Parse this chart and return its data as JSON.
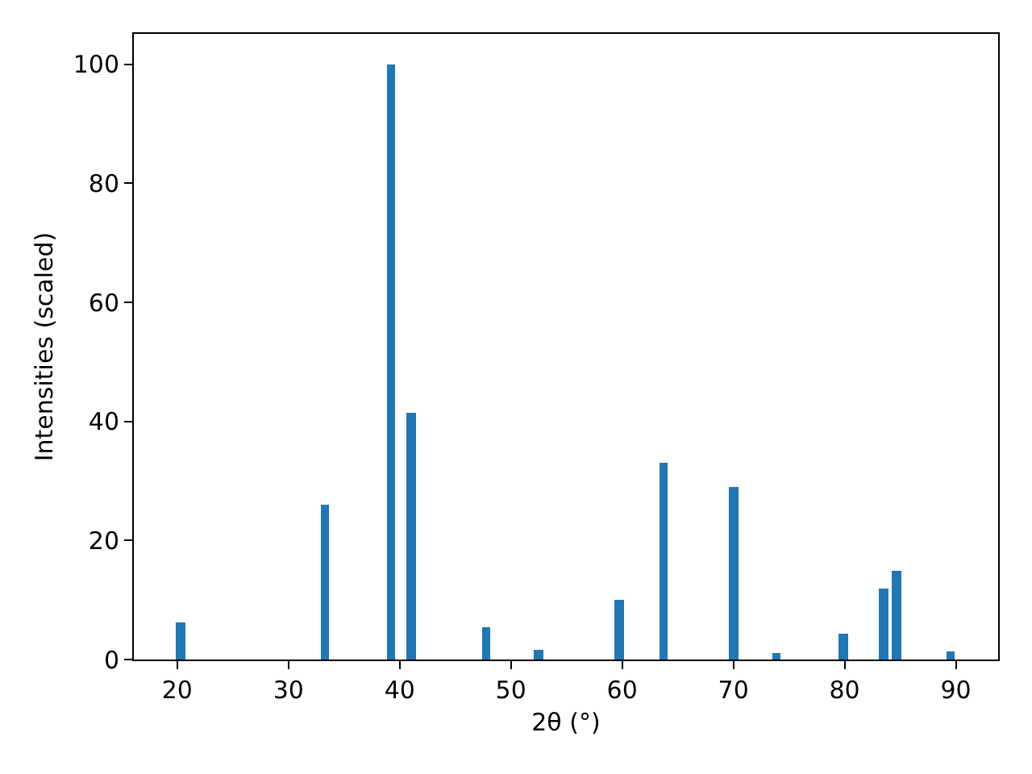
{
  "chart_data": {
    "type": "bar",
    "xlabel": "2θ (°)",
    "ylabel": "Intensities (scaled)",
    "x": [
      20.3,
      33.3,
      39.2,
      41.0,
      47.8,
      52.5,
      59.7,
      63.7,
      70.0,
      73.9,
      79.9,
      83.5,
      84.7,
      89.5
    ],
    "values": [
      6.2,
      26.0,
      100,
      41.5,
      5.4,
      1.6,
      10.0,
      33.1,
      29.0,
      1.1,
      4.3,
      11.9,
      14.9,
      1.4
    ],
    "color": "#1f77b4",
    "xlim": [
      16.1,
      93.8
    ],
    "xticks": [
      20,
      30,
      40,
      50,
      60,
      70,
      80,
      90
    ],
    "ylim": [
      0,
      105.1
    ],
    "yticks": [
      0,
      20,
      40,
      60,
      80,
      100
    ],
    "grid": false
  }
}
